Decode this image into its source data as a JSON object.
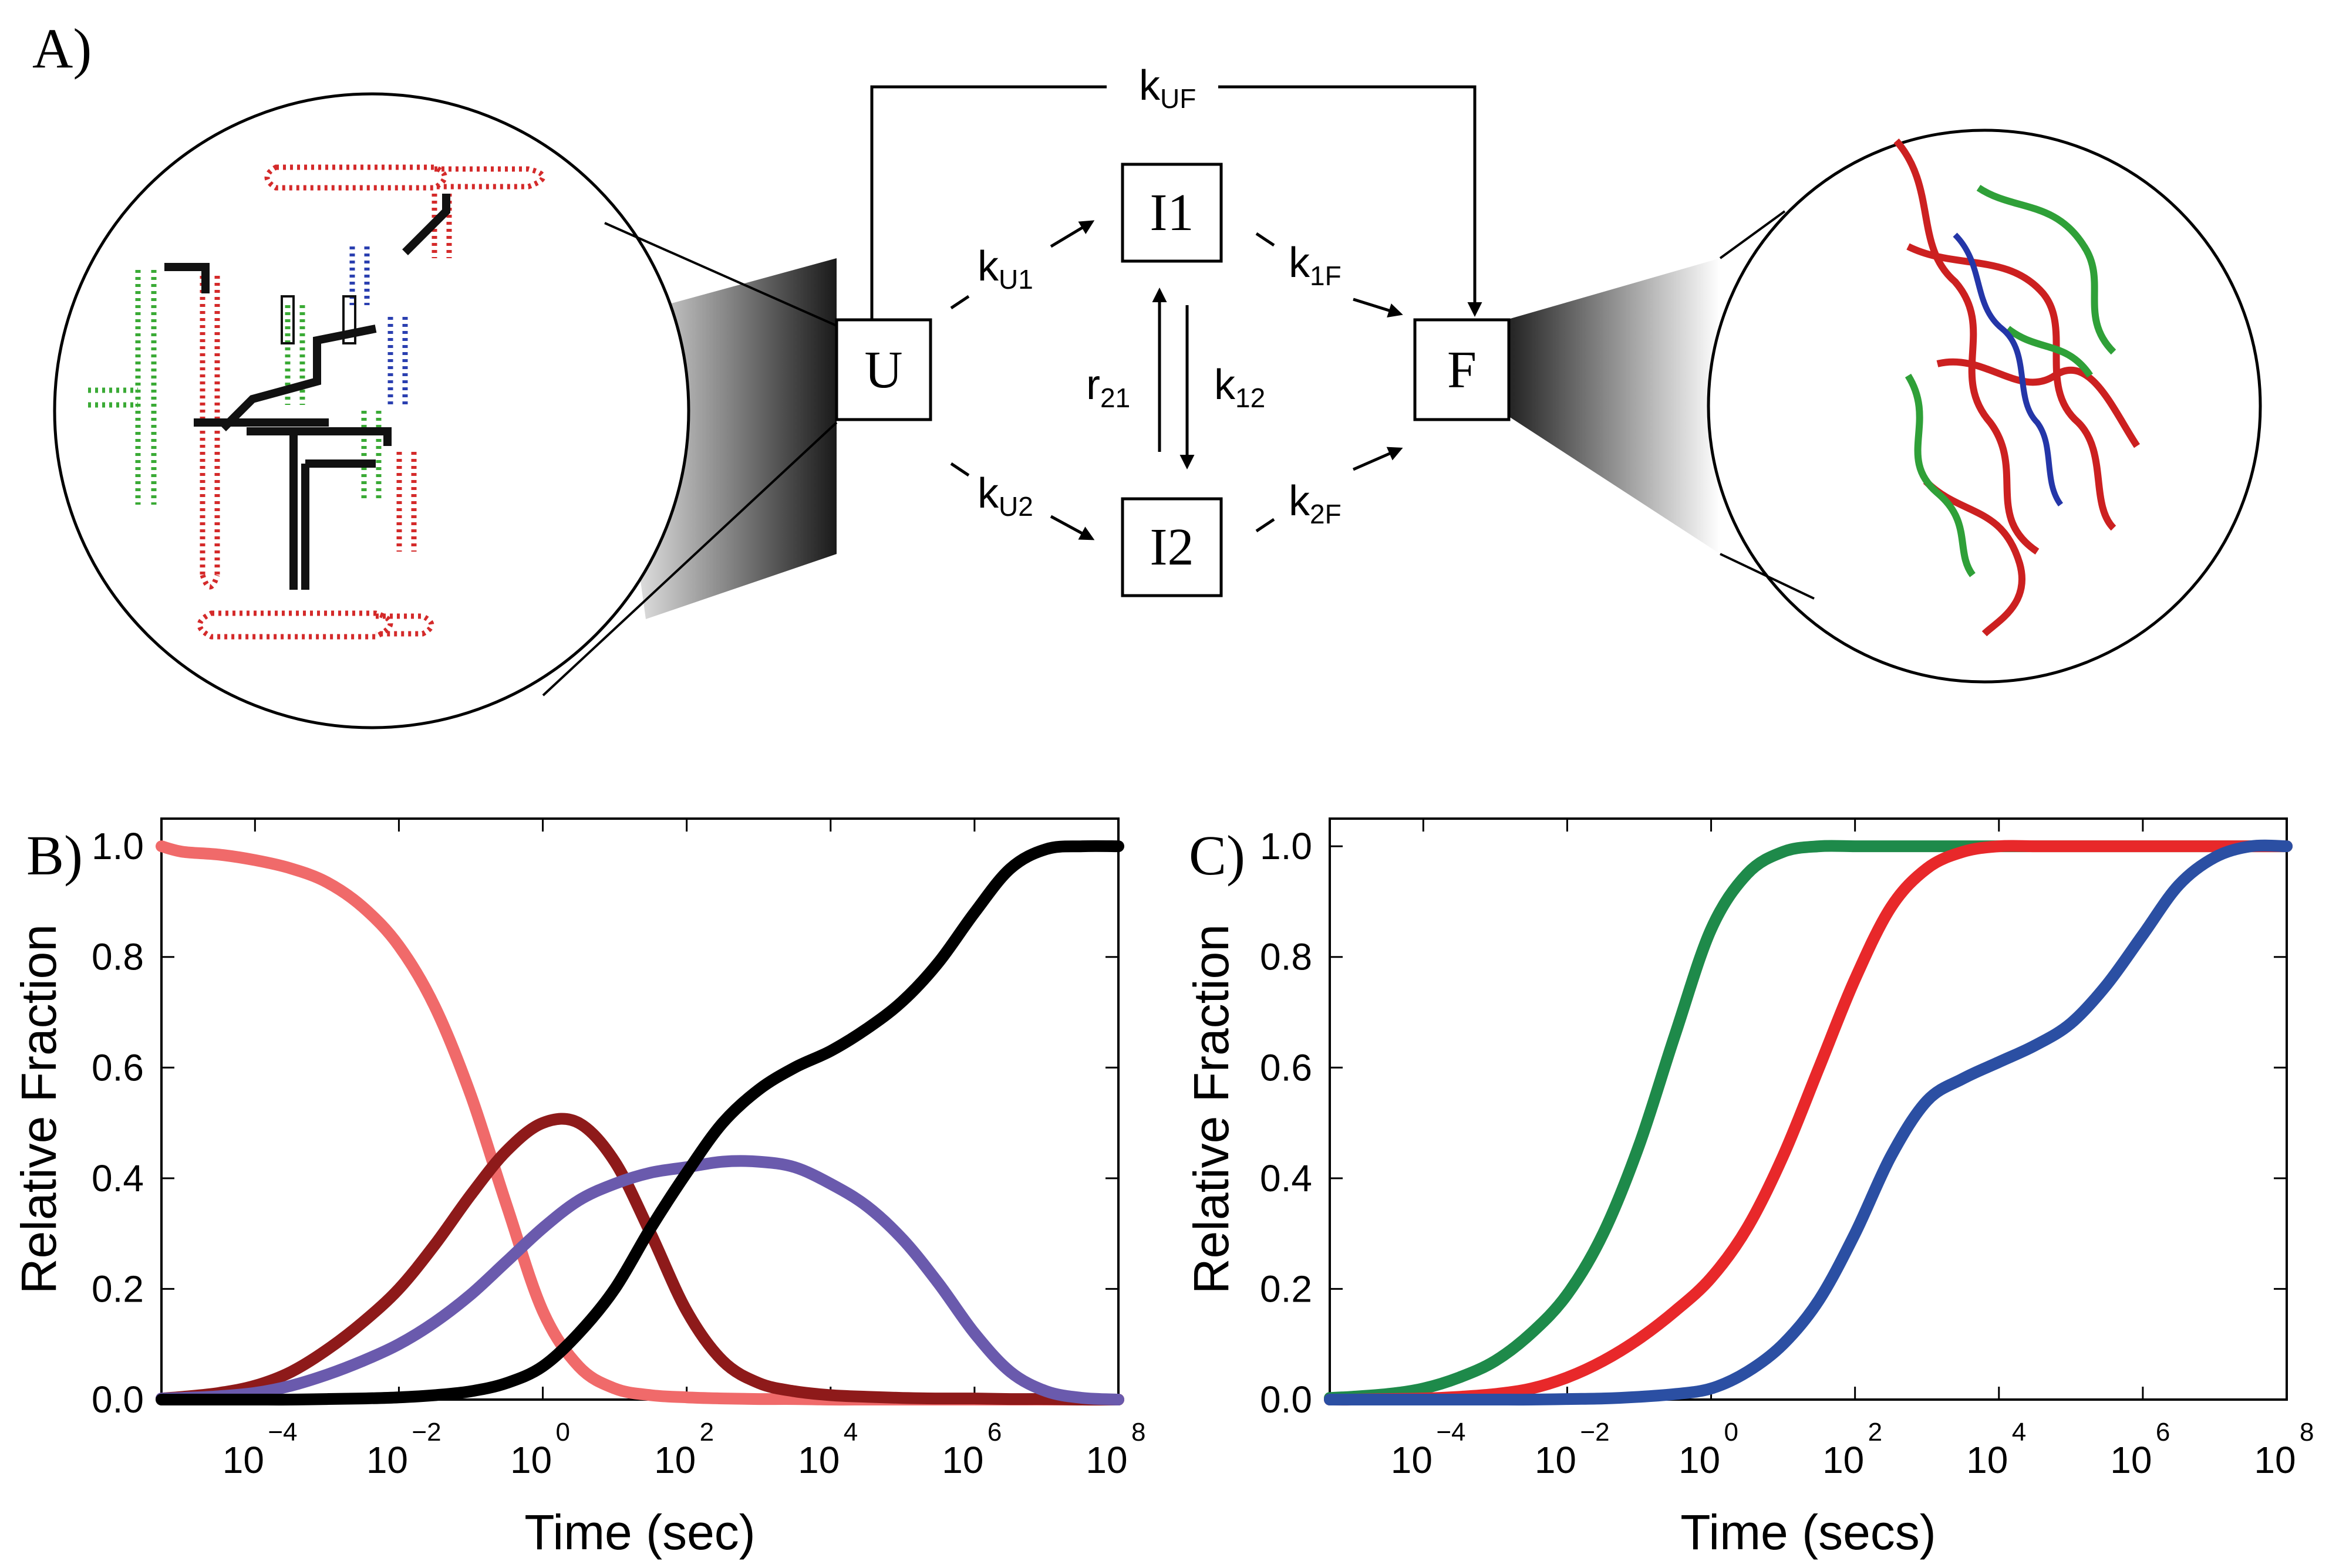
{
  "panel_labels": {
    "a": "A)",
    "b": "B)",
    "c": "C)"
  },
  "scheme": {
    "states": {
      "unfolded": "U",
      "intermediate_1": "I1",
      "intermediate_2": "I2",
      "folded": "F"
    },
    "rates": {
      "uf": {
        "base": "k",
        "sub": "UF"
      },
      "u1": {
        "base": "k",
        "sub": "U1"
      },
      "u2": {
        "base": "k",
        "sub": "U2"
      },
      "f1": {
        "base": "k",
        "sub": "1F"
      },
      "f2": {
        "base": "k",
        "sub": "2F"
      },
      "r21": {
        "base": "r",
        "sub": "21"
      },
      "k12": {
        "base": "k",
        "sub": "12"
      }
    },
    "colors": {
      "domain_red": "#d42a2a",
      "domain_green": "#3aaa35",
      "domain_blue": "#2a3fb0",
      "backbone": "#111111"
    }
  },
  "chart_data": [
    {
      "type": "line",
      "panel": "B",
      "xscale": "log10",
      "xlabel": "Time (sec)",
      "ylabel": "Relative Fraction",
      "xlim": [
        -5.3,
        8
      ],
      "ylim": [
        0,
        1.05
      ],
      "yticks": [
        0.0,
        0.2,
        0.4,
        0.6,
        0.8,
        1.0
      ],
      "ytick_labels": [
        "0.0",
        "0.2",
        "0.4",
        "0.6",
        "0.8",
        "1.0"
      ],
      "xtick_base": "10",
      "xtick_exponents": [
        "−4",
        "−2",
        "0",
        "2",
        "4",
        "6",
        "8"
      ],
      "xtick_positions": [
        -4,
        -2,
        0,
        2,
        4,
        6,
        8
      ],
      "x_log10": [
        -5.3,
        -5,
        -4.5,
        -4,
        -3.5,
        -3,
        -2.5,
        -2,
        -1.5,
        -1,
        -0.5,
        0,
        0.5,
        1,
        1.5,
        2,
        2.5,
        3,
        3.5,
        4,
        4.5,
        5,
        5.5,
        6,
        6.5,
        7,
        7.5,
        8
      ],
      "series": [
        {
          "name": "U",
          "color": "#f06a6a",
          "values": [
            1.0,
            0.99,
            0.985,
            0.975,
            0.96,
            0.935,
            0.89,
            0.82,
            0.71,
            0.55,
            0.35,
            0.16,
            0.06,
            0.02,
            0.008,
            0.004,
            0.002,
            0.001,
            0.001,
            0.0,
            0.0,
            0.0,
            0.0,
            0.0,
            0.0,
            0.0,
            0.0,
            0.0
          ]
        },
        {
          "name": "I1",
          "color": "#8e1a1a",
          "values": [
            0.002,
            0.005,
            0.012,
            0.025,
            0.05,
            0.09,
            0.14,
            0.2,
            0.28,
            0.37,
            0.45,
            0.5,
            0.5,
            0.43,
            0.3,
            0.16,
            0.07,
            0.03,
            0.015,
            0.008,
            0.005,
            0.003,
            0.002,
            0.002,
            0.001,
            0.001,
            0.0,
            0.0
          ]
        },
        {
          "name": "I2",
          "color": "#6a5aad",
          "values": [
            0.002,
            0.003,
            0.006,
            0.012,
            0.025,
            0.045,
            0.07,
            0.1,
            0.14,
            0.19,
            0.25,
            0.31,
            0.36,
            0.39,
            0.41,
            0.42,
            0.43,
            0.43,
            0.42,
            0.39,
            0.35,
            0.29,
            0.21,
            0.12,
            0.05,
            0.015,
            0.003,
            0.0
          ]
        },
        {
          "name": "F",
          "color": "#000000",
          "values": [
            0.0,
            0.0,
            0.0,
            0.0,
            0.0,
            0.001,
            0.002,
            0.004,
            0.008,
            0.015,
            0.03,
            0.06,
            0.12,
            0.2,
            0.31,
            0.41,
            0.5,
            0.56,
            0.6,
            0.63,
            0.67,
            0.72,
            0.79,
            0.88,
            0.96,
            0.995,
            1.0,
            1.0
          ]
        }
      ]
    },
    {
      "type": "line",
      "panel": "C",
      "xscale": "log10",
      "xlabel": "Time (secs)",
      "ylabel": "Relative Fraction",
      "xlim": [
        -5.3,
        8
      ],
      "ylim": [
        0,
        1.05
      ],
      "yticks": [
        0.0,
        0.2,
        0.4,
        0.6,
        0.8,
        1.0
      ],
      "ytick_labels": [
        "0.0",
        "0.2",
        "0.4",
        "0.6",
        "0.8",
        "1.0"
      ],
      "xtick_base": "10",
      "xtick_exponents": [
        "−4",
        "−2",
        "0",
        "2",
        "4",
        "6",
        "8"
      ],
      "xtick_positions": [
        -4,
        -2,
        0,
        2,
        4,
        6,
        8
      ],
      "x_log10": [
        -5.3,
        -5,
        -4.5,
        -4,
        -3.5,
        -3,
        -2.5,
        -2,
        -1.5,
        -1,
        -0.5,
        0,
        0.5,
        1,
        1.5,
        2,
        2.5,
        3,
        3.5,
        4,
        4.5,
        5,
        5.5,
        6,
        6.5,
        7,
        7.5,
        8
      ],
      "series": [
        {
          "name": "green",
          "color": "#1e8a4a",
          "values": [
            0.003,
            0.005,
            0.01,
            0.02,
            0.04,
            0.07,
            0.12,
            0.19,
            0.3,
            0.46,
            0.66,
            0.85,
            0.95,
            0.99,
            1.0,
            1.0,
            1.0,
            1.0,
            1.0,
            1.0,
            1.0,
            1.0,
            1.0,
            1.0,
            1.0,
            1.0,
            1.0,
            1.0
          ]
        },
        {
          "name": "red",
          "color": "#e8282a",
          "values": [
            0.0,
            0.0,
            0.001,
            0.002,
            0.005,
            0.01,
            0.02,
            0.04,
            0.07,
            0.11,
            0.16,
            0.22,
            0.31,
            0.44,
            0.6,
            0.76,
            0.89,
            0.96,
            0.99,
            1.0,
            1.0,
            1.0,
            1.0,
            1.0,
            1.0,
            1.0,
            1.0,
            1.0
          ]
        },
        {
          "name": "blue",
          "color": "#2b4fa3",
          "values": [
            0.0,
            0.0,
            0.0,
            0.0,
            0.0,
            0.0,
            0.0,
            0.001,
            0.002,
            0.005,
            0.01,
            0.02,
            0.05,
            0.1,
            0.18,
            0.3,
            0.44,
            0.54,
            0.58,
            0.61,
            0.64,
            0.68,
            0.75,
            0.84,
            0.93,
            0.98,
            1.0,
            1.0
          ]
        }
      ]
    }
  ]
}
